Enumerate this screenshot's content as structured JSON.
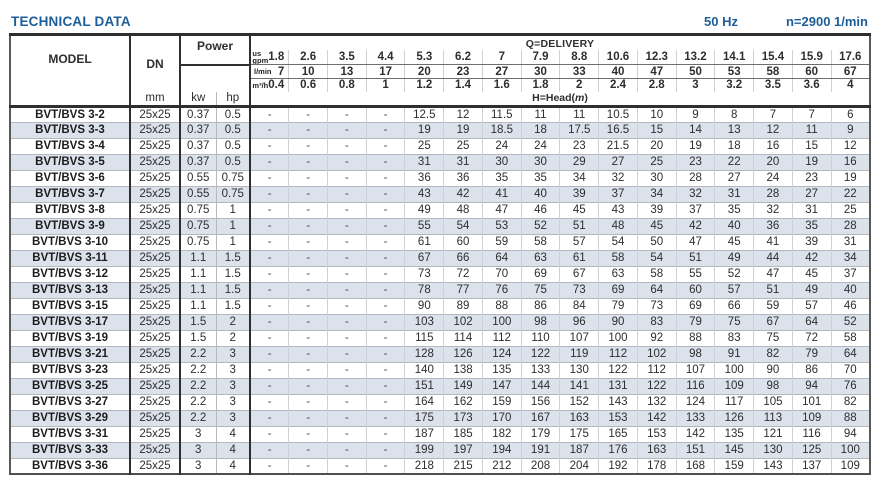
{
  "page": {
    "title": "TECHNICAL DATA",
    "frequency": "50 Hz",
    "speed": "n=2900 1/min"
  },
  "table": {
    "headers": {
      "model": "MODEL",
      "dn": "DN",
      "mm": "mm",
      "power": "Power",
      "kw": "kw",
      "hp": "hp",
      "q_delivery": "Q=DELIVERY",
      "h_head_pre": "H=Head(",
      "h_head_m": "m",
      "h_head_post": ")"
    },
    "dash": "-",
    "q_units": [
      {
        "label_lines": [
          "us",
          "gpm"
        ],
        "values": [
          1.8,
          2.6,
          3.5,
          4.4,
          5.3,
          6.2,
          7,
          7.9,
          8.8,
          10.6,
          12.3,
          13.2,
          14.1,
          15.4,
          15.9,
          17.6
        ]
      },
      {
        "label_lines": [
          "l/min"
        ],
        "values": [
          7,
          10,
          13,
          17,
          20,
          23,
          27,
          30,
          33,
          40,
          47,
          50,
          53,
          58,
          60,
          67
        ]
      },
      {
        "label_lines": [
          "m³/h"
        ],
        "values": [
          0.4,
          0.6,
          0.8,
          1,
          1.2,
          1.4,
          1.6,
          1.8,
          2,
          2.4,
          2.8,
          3,
          3.2,
          3.5,
          3.6,
          4
        ]
      }
    ],
    "rows": [
      {
        "model": "BVT/BVS 3-2",
        "dn": "25x25",
        "kw": "0.37",
        "hp": "0.5",
        "head": [
          12.5,
          12,
          11.5,
          11,
          11,
          10.5,
          10,
          9,
          8,
          7,
          7,
          6
        ]
      },
      {
        "model": "BVT/BVS 3-3",
        "dn": "25x25",
        "kw": "0.37",
        "hp": "0.5",
        "head": [
          19,
          19,
          18.5,
          18,
          17.5,
          16.5,
          15,
          14,
          13,
          12,
          11,
          9
        ]
      },
      {
        "model": "BVT/BVS 3-4",
        "dn": "25x25",
        "kw": "0.37",
        "hp": "0.5",
        "head": [
          25,
          25,
          24,
          24,
          23,
          21.5,
          20,
          19,
          18,
          16,
          15,
          12
        ]
      },
      {
        "model": "BVT/BVS 3-5",
        "dn": "25x25",
        "kw": "0.37",
        "hp": "0.5",
        "head": [
          31,
          31,
          30,
          30,
          29,
          27,
          25,
          23,
          22,
          20,
          19,
          16
        ]
      },
      {
        "model": "BVT/BVS 3-6",
        "dn": "25x25",
        "kw": "0.55",
        "hp": "0.75",
        "head": [
          36,
          36,
          35,
          35,
          34,
          32,
          30,
          28,
          27,
          24,
          23,
          19
        ]
      },
      {
        "model": "BVT/BVS 3-7",
        "dn": "25x25",
        "kw": "0.55",
        "hp": "0.75",
        "head": [
          43,
          42,
          41,
          40,
          39,
          37,
          34,
          32,
          31,
          28,
          27,
          22
        ]
      },
      {
        "model": "BVT/BVS 3-8",
        "dn": "25x25",
        "kw": "0.75",
        "hp": "1",
        "head": [
          49,
          48,
          47,
          46,
          45,
          43,
          39,
          37,
          35,
          32,
          31,
          25
        ]
      },
      {
        "model": "BVT/BVS 3-9",
        "dn": "25x25",
        "kw": "0.75",
        "hp": "1",
        "head": [
          55,
          54,
          53,
          52,
          51,
          48,
          45,
          42,
          40,
          36,
          35,
          28
        ]
      },
      {
        "model": "BVT/BVS 3-10",
        "dn": "25x25",
        "kw": "0.75",
        "hp": "1",
        "head": [
          61,
          60,
          59,
          58,
          57,
          54,
          50,
          47,
          45,
          41,
          39,
          31
        ]
      },
      {
        "model": "BVT/BVS 3-11",
        "dn": "25x25",
        "kw": "1.1",
        "hp": "1.5",
        "head": [
          67,
          66,
          64,
          63,
          61,
          58,
          54,
          51,
          49,
          44,
          42,
          34
        ]
      },
      {
        "model": "BVT/BVS 3-12",
        "dn": "25x25",
        "kw": "1.1",
        "hp": "1.5",
        "head": [
          73,
          72,
          70,
          69,
          67,
          63,
          58,
          55,
          52,
          47,
          45,
          37
        ]
      },
      {
        "model": "BVT/BVS 3-13",
        "dn": "25x25",
        "kw": "1.1",
        "hp": "1.5",
        "head": [
          78,
          77,
          76,
          75,
          73,
          69,
          64,
          60,
          57,
          51,
          49,
          40
        ]
      },
      {
        "model": "BVT/BVS 3-15",
        "dn": "25x25",
        "kw": "1.1",
        "hp": "1.5",
        "head": [
          90,
          89,
          88,
          86,
          84,
          79,
          73,
          69,
          66,
          59,
          57,
          46
        ]
      },
      {
        "model": "BVT/BVS 3-17",
        "dn": "25x25",
        "kw": "1.5",
        "hp": "2",
        "head": [
          103,
          102,
          100,
          98,
          96,
          90,
          83,
          79,
          75,
          67,
          64,
          52
        ]
      },
      {
        "model": "BVT/BVS 3-19",
        "dn": "25x25",
        "kw": "1.5",
        "hp": "2",
        "head": [
          115,
          114,
          112,
          110,
          107,
          100,
          92,
          88,
          83,
          75,
          72,
          58
        ]
      },
      {
        "model": "BVT/BVS 3-21",
        "dn": "25x25",
        "kw": "2.2",
        "hp": "3",
        "head": [
          128,
          126,
          124,
          122,
          119,
          112,
          102,
          98,
          91,
          82,
          79,
          64
        ]
      },
      {
        "model": "BVT/BVS 3-23",
        "dn": "25x25",
        "kw": "2.2",
        "hp": "3",
        "head": [
          140,
          138,
          135,
          133,
          130,
          122,
          112,
          107,
          100,
          90,
          86,
          70
        ]
      },
      {
        "model": "BVT/BVS 3-25",
        "dn": "25x25",
        "kw": "2.2",
        "hp": "3",
        "head": [
          151,
          149,
          147,
          144,
          141,
          131,
          122,
          116,
          109,
          98,
          94,
          76
        ]
      },
      {
        "model": "BVT/BVS 3-27",
        "dn": "25x25",
        "kw": "2.2",
        "hp": "3",
        "head": [
          164,
          162,
          159,
          156,
          152,
          143,
          132,
          124,
          117,
          105,
          101,
          82
        ]
      },
      {
        "model": "BVT/BVS 3-29",
        "dn": "25x25",
        "kw": "2.2",
        "hp": "3",
        "head": [
          175,
          173,
          170,
          167,
          163,
          153,
          142,
          133,
          126,
          113,
          109,
          88
        ]
      },
      {
        "model": "BVT/BVS 3-31",
        "dn": "25x25",
        "kw": "3",
        "hp": "4",
        "head": [
          187,
          185,
          182,
          179,
          175,
          165,
          153,
          142,
          135,
          121,
          116,
          94
        ]
      },
      {
        "model": "BVT/BVS 3-33",
        "dn": "25x25",
        "kw": "3",
        "hp": "4",
        "head": [
          199,
          197,
          194,
          191,
          187,
          176,
          163,
          151,
          145,
          130,
          125,
          100
        ]
      },
      {
        "model": "BVT/BVS 3-36",
        "dn": "25x25",
        "kw": "3",
        "hp": "4",
        "head": [
          218,
          215,
          212,
          208,
          204,
          192,
          178,
          168,
          159,
          143,
          137,
          109
        ]
      }
    ],
    "colors": {
      "accent_blue": "#1d5e99",
      "shaded_row": "#dbe2eb",
      "border_dark": "#2f2f2f",
      "border_light": "#cdd1d7"
    }
  }
}
